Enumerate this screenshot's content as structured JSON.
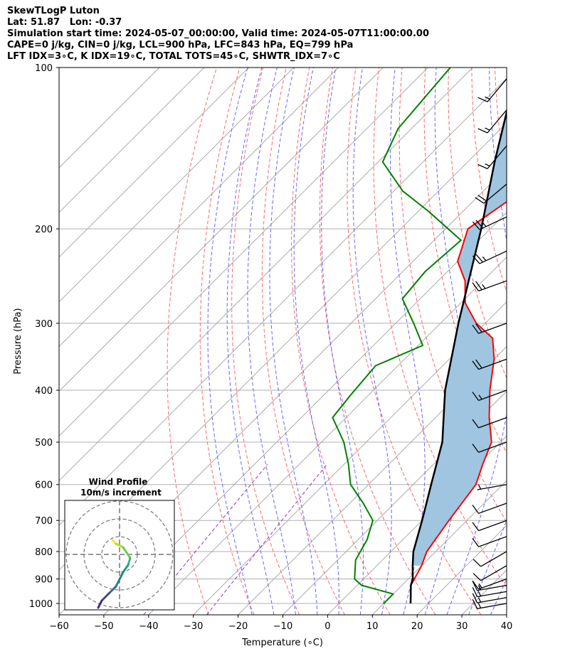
{
  "title_lines": [
    "SkewTLogP Luton",
    "Lat: 51.87   Lon: -0.37",
    "Simulation start time: 2024-05-07_00:00:00, Valid time: 2024-05-07T11:00:00.00",
    "CAPE=0 j/kg, CIN=0 j/kg, LCL=900 hPa, LFC=843 hPa, EQ=799 hPa",
    "LFT IDX=3∘C, K IDX=19∘C, TOTAL TOTS=45∘C, SHWTR_IDX=7∘C"
  ],
  "colors": {
    "temperature": "#ff0000",
    "dewpoint": "#008000",
    "parcel": "#000000",
    "cape_fill": "#9fc5e0",
    "dry_adiabat": "#ff6666",
    "moist_adiabat": "#6666ff",
    "mixing_ratio": "#9933cc",
    "isotherm": "#aaaaaa"
  },
  "chart_data": {
    "type": "line",
    "subtype": "skew-t log-p",
    "xlabel": "Temperature (∘C)",
    "ylabel": "Pressure (hPa)",
    "xlim": [
      -60,
      40
    ],
    "ylim": [
      1050,
      100
    ],
    "yscale": "log",
    "x_ticks": [
      -60,
      -50,
      -40,
      -30,
      -20,
      -10,
      0,
      10,
      20,
      30,
      40
    ],
    "y_ticks": [
      1000,
      900,
      800,
      700,
      600,
      500,
      400,
      300,
      200,
      100
    ],
    "grid": true,
    "series": [
      {
        "key": "temperature",
        "points": [
          [
            16,
            1000
          ],
          [
            12,
            925
          ],
          [
            10,
            850
          ],
          [
            8,
            800
          ],
          [
            6,
            700
          ],
          [
            4,
            600
          ],
          [
            1,
            550
          ],
          [
            -2,
            500
          ],
          [
            -8,
            450
          ],
          [
            -14,
            400
          ],
          [
            -20,
            350
          ],
          [
            -25,
            320
          ],
          [
            -32,
            300
          ],
          [
            -39,
            275
          ],
          [
            -44,
            250
          ],
          [
            -50,
            230
          ],
          [
            -55,
            200
          ],
          [
            -52,
            175
          ],
          [
            -52,
            150
          ],
          [
            -52,
            130
          ],
          [
            -55,
            110
          ],
          [
            -60,
            100
          ]
        ]
      },
      {
        "key": "dewpoint",
        "points": [
          [
            10,
            1000
          ],
          [
            10,
            960
          ],
          [
            1,
            925
          ],
          [
            -2,
            900
          ],
          [
            -6,
            830
          ],
          [
            -8,
            760
          ],
          [
            -11,
            700
          ],
          [
            -17,
            650
          ],
          [
            -24,
            600
          ],
          [
            -29,
            550
          ],
          [
            -35,
            500
          ],
          [
            -43,
            450
          ],
          [
            -44,
            410
          ],
          [
            -45,
            360
          ],
          [
            -39,
            330
          ],
          [
            -46,
            300
          ],
          [
            -54,
            270
          ],
          [
            -55,
            240
          ],
          [
            -54,
            210
          ],
          [
            -68,
            185
          ],
          [
            -78,
            170
          ],
          [
            -89,
            150
          ],
          [
            -93,
            130
          ],
          [
            -95,
            100
          ]
        ]
      },
      {
        "key": "parcel",
        "points": [
          [
            16,
            1000
          ],
          [
            12,
            925
          ],
          [
            11,
            900
          ],
          [
            8,
            850
          ],
          [
            5,
            800
          ],
          [
            0,
            700
          ],
          [
            -6,
            600
          ],
          [
            -13,
            500
          ],
          [
            -24,
            400
          ],
          [
            -36,
            300
          ],
          [
            -52,
            200
          ],
          [
            -64,
            150
          ],
          [
            -80,
            100
          ]
        ]
      }
    ],
    "wind_barbs": {
      "unit": "kt",
      "levels": [
        {
          "p": 1000,
          "speed": 15,
          "dir": 260
        },
        {
          "p": 975,
          "speed": 15,
          "dir": 260
        },
        {
          "p": 950,
          "speed": 15,
          "dir": 260
        },
        {
          "p": 925,
          "speed": 15,
          "dir": 260
        },
        {
          "p": 900,
          "speed": 15,
          "dir": 250
        },
        {
          "p": 850,
          "speed": 10,
          "dir": 240
        },
        {
          "p": 800,
          "speed": 10,
          "dir": 240
        },
        {
          "p": 750,
          "speed": 10,
          "dir": 250
        },
        {
          "p": 700,
          "speed": 10,
          "dir": 250
        },
        {
          "p": 650,
          "speed": 10,
          "dir": 250
        },
        {
          "p": 600,
          "speed": 5,
          "dir": 260
        },
        {
          "p": 500,
          "speed": 10,
          "dir": 250
        },
        {
          "p": 450,
          "speed": 10,
          "dir": 250
        },
        {
          "p": 400,
          "speed": 15,
          "dir": 250
        },
        {
          "p": 350,
          "speed": 20,
          "dir": 250
        },
        {
          "p": 300,
          "speed": 20,
          "dir": 250
        },
        {
          "p": 250,
          "speed": 25,
          "dir": 250
        },
        {
          "p": 220,
          "speed": 25,
          "dir": 245
        },
        {
          "p": 190,
          "speed": 25,
          "dir": 245
        },
        {
          "p": 165,
          "speed": 20,
          "dir": 230
        },
        {
          "p": 140,
          "speed": 15,
          "dir": 220
        },
        {
          "p": 120,
          "speed": 15,
          "dir": 220
        },
        {
          "p": 105,
          "speed": 15,
          "dir": 220
        }
      ]
    },
    "hodograph": {
      "title": "Wind Profile",
      "subtitle": "10m/s increment",
      "ring_increment_ms": 10,
      "rings": 3,
      "points": [
        [
          -1,
          -2
        ],
        [
          -0.5,
          -1.5
        ],
        [
          0.5,
          -1.0
        ],
        [
          1.5,
          0.5
        ],
        [
          1.2,
          1.5
        ],
        [
          0.5,
          2.5
        ],
        [
          -0.5,
          4.5
        ],
        [
          -1.5,
          5.5
        ],
        [
          -2.5,
          6.5
        ],
        [
          -3,
          7.5
        ]
      ]
    }
  }
}
